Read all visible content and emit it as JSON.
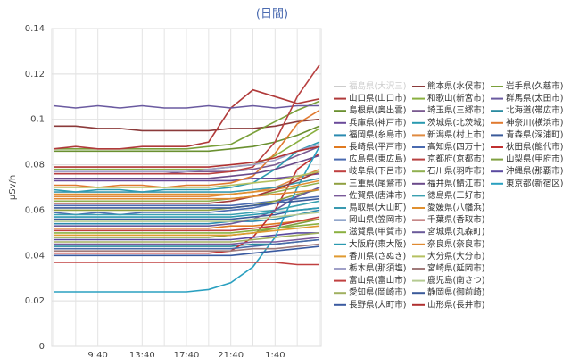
{
  "chart_data": {
    "type": "line",
    "title": "(日間)",
    "y_label": "μSv/h",
    "categories": [
      null,
      null,
      "9:40",
      null,
      "13:40",
      null,
      "17:40",
      null,
      "21:40",
      null,
      "1:40",
      null,
      null
    ],
    "ylim": [
      0,
      0.14
    ],
    "yticks": [
      0,
      0.02,
      0.04,
      0.06,
      0.08,
      0.1,
      0.12,
      0.14
    ],
    "grid": true,
    "series": [
      {
        "name": "福島県(大沢三)",
        "color": "#4572a7",
        "hidden": true,
        "values": [
          null,
          null,
          null,
          null,
          null,
          null,
          null,
          null,
          null,
          null,
          null,
          null,
          null
        ]
      },
      {
        "name": "熊本県(水俣市)",
        "color": "#8b3a3a",
        "values": [
          0.097,
          0.097,
          0.096,
          0.096,
          0.095,
          0.095,
          0.095,
          0.095,
          0.096,
          0.096,
          0.097,
          0.099,
          0.1
        ]
      },
      {
        "name": "岩手県(久慈市)",
        "color": "#7aa03a",
        "values": [
          0.087,
          0.087,
          0.087,
          0.087,
          0.087,
          0.087,
          0.087,
          0.088,
          0.089,
          0.094,
          0.099,
          0.104,
          0.108
        ]
      },
      {
        "name": "山口県(山口市)",
        "color": "#b03a3a",
        "values": [
          0.087,
          0.088,
          0.087,
          0.087,
          0.088,
          0.088,
          0.088,
          0.09,
          0.105,
          0.113,
          0.11,
          0.107,
          0.109
        ]
      },
      {
        "name": "和歌山(新宮市)",
        "color": "#8ab040",
        "values": [
          0.078,
          0.078,
          0.078,
          0.078,
          0.078,
          0.078,
          0.078,
          0.078,
          0.079,
          0.08,
          0.084,
          0.09,
          0.096
        ]
      },
      {
        "name": "群馬県(太田市)",
        "color": "#6a5aa0",
        "values": [
          0.106,
          0.105,
          0.106,
          0.105,
          0.106,
          0.105,
          0.105,
          0.106,
          0.105,
          0.106,
          0.105,
          0.106,
          0.106
        ]
      },
      {
        "name": "島根県(奥出雲)",
        "color": "#6a9030",
        "values": [
          0.086,
          0.086,
          0.086,
          0.086,
          0.086,
          0.086,
          0.086,
          0.086,
          0.087,
          0.088,
          0.09,
          0.093,
          0.097
        ]
      },
      {
        "name": "埼玉県(三郷市)",
        "color": "#7a5a90",
        "values": [
          0.076,
          0.076,
          0.076,
          0.076,
          0.076,
          0.076,
          0.077,
          0.077,
          0.077,
          0.078,
          0.08,
          0.084,
          0.088
        ]
      },
      {
        "name": "北海道(帯広市)",
        "color": "#2a8aa0",
        "values": [
          0.044,
          0.044,
          0.044,
          0.044,
          0.044,
          0.044,
          0.044,
          0.044,
          0.044,
          0.045,
          0.045,
          0.046,
          0.047
        ]
      },
      {
        "name": "兵庫県(神戸市)",
        "color": "#6a4a9a",
        "values": [
          0.073,
          0.073,
          0.073,
          0.073,
          0.073,
          0.073,
          0.073,
          0.073,
          0.073,
          0.074,
          0.074,
          0.075,
          0.076
        ]
      },
      {
        "name": "茨城県(北茨城)",
        "color": "#2a9ab0",
        "values": [
          0.069,
          0.068,
          0.069,
          0.069,
          0.068,
          0.069,
          0.069,
          0.069,
          0.07,
          0.072,
          0.078,
          0.086,
          0.09
        ]
      },
      {
        "name": "神奈川(横浜市)",
        "color": "#e07a30",
        "values": [
          0.071,
          0.071,
          0.07,
          0.071,
          0.071,
          0.07,
          0.071,
          0.071,
          0.072,
          0.075,
          0.085,
          0.098,
          0.104
        ]
      },
      {
        "name": "福岡県(糸島市)",
        "color": "#2a8ab0",
        "values": [
          0.054,
          0.054,
          0.054,
          0.054,
          0.054,
          0.054,
          0.054,
          0.054,
          0.055,
          0.055,
          0.056,
          0.058,
          0.06
        ]
      },
      {
        "name": "新潟県(村上市)",
        "color": "#e08a40",
        "values": [
          0.066,
          0.066,
          0.066,
          0.066,
          0.066,
          0.066,
          0.066,
          0.066,
          0.067,
          0.068,
          0.07,
          0.074,
          0.078
        ]
      },
      {
        "name": "青森県(深浦町)",
        "color": "#3a5a9a",
        "values": [
          0.056,
          0.056,
          0.056,
          0.056,
          0.056,
          0.056,
          0.056,
          0.056,
          0.056,
          0.057,
          0.058,
          0.06,
          0.061
        ]
      },
      {
        "name": "長崎県(平戸市)",
        "color": "#e07a20",
        "values": [
          0.052,
          0.052,
          0.052,
          0.052,
          0.052,
          0.052,
          0.052,
          0.052,
          0.053,
          0.053,
          0.054,
          0.055,
          0.056
        ]
      },
      {
        "name": "高知県(四万十)",
        "color": "#4a6ab0",
        "values": [
          0.062,
          0.062,
          0.062,
          0.062,
          0.062,
          0.062,
          0.062,
          0.062,
          0.062,
          0.063,
          0.064,
          0.065,
          0.066
        ]
      },
      {
        "name": "秋田県(能代市)",
        "color": "#c03030",
        "values": [
          0.041,
          0.041,
          0.041,
          0.041,
          0.041,
          0.041,
          0.041,
          0.041,
          0.042,
          0.048,
          0.06,
          0.078,
          0.085
        ]
      },
      {
        "name": "広島県(東広島)",
        "color": "#4a6ab0",
        "values": [
          0.059,
          0.058,
          0.059,
          0.058,
          0.059,
          0.059,
          0.059,
          0.059,
          0.06,
          0.061,
          0.063,
          0.066,
          0.07
        ]
      },
      {
        "name": "京都府(京都市)",
        "color": "#b84040",
        "values": [
          0.076,
          0.076,
          0.076,
          0.076,
          0.076,
          0.076,
          0.076,
          0.076,
          0.077,
          0.079,
          0.09,
          0.11,
          0.124
        ]
      },
      {
        "name": "山梨県(甲府市)",
        "color": "#80a040",
        "values": [
          0.048,
          0.048,
          0.048,
          0.048,
          0.048,
          0.048,
          0.048,
          0.048,
          0.049,
          0.05,
          0.052,
          0.054,
          0.056
        ]
      },
      {
        "name": "岐阜県(下呂市)",
        "color": "#c04040",
        "values": [
          0.051,
          0.051,
          0.051,
          0.051,
          0.051,
          0.051,
          0.051,
          0.051,
          0.051,
          0.052,
          0.053,
          0.055,
          0.057
        ]
      },
      {
        "name": "石川県(羽咋市)",
        "color": "#90b050",
        "values": [
          0.064,
          0.064,
          0.064,
          0.064,
          0.064,
          0.064,
          0.064,
          0.064,
          0.065,
          0.066,
          0.068,
          0.07,
          0.072
        ]
      },
      {
        "name": "沖縄県(那覇市)",
        "color": "#5a4aa0",
        "values": [
          0.047,
          0.047,
          0.047,
          0.047,
          0.047,
          0.047,
          0.047,
          0.047,
          0.047,
          0.048,
          0.049,
          0.05,
          0.05
        ]
      },
      {
        "name": "三重県(尾鷲市)",
        "color": "#90a040",
        "values": [
          0.06,
          0.06,
          0.06,
          0.06,
          0.06,
          0.06,
          0.06,
          0.06,
          0.061,
          0.062,
          0.064,
          0.067,
          0.069
        ]
      },
      {
        "name": "福井県(鯖江市)",
        "color": "#6a4a8a",
        "values": [
          0.074,
          0.074,
          0.074,
          0.074,
          0.074,
          0.074,
          0.074,
          0.074,
          0.075,
          0.076,
          0.078,
          0.081,
          0.084
        ]
      },
      {
        "name": "東京都(新宿区)",
        "color": "#2aa0c0",
        "values": [
          0.024,
          0.024,
          0.024,
          0.024,
          0.024,
          0.024,
          0.024,
          0.025,
          0.028,
          0.035,
          0.048,
          0.07,
          0.088
        ]
      },
      {
        "name": "佐賀県(唐津市)",
        "color": "#7a5a9a",
        "values": [
          0.045,
          0.045,
          0.045,
          0.045,
          0.045,
          0.045,
          0.045,
          0.045,
          0.045,
          0.046,
          0.046,
          0.047,
          0.048
        ]
      },
      {
        "name": "徳島県(三好市)",
        "color": "#3aa0b0",
        "values": [
          0.058,
          0.058,
          0.058,
          0.058,
          0.058,
          0.058,
          0.058,
          0.058,
          0.058,
          0.059,
          0.06,
          0.062,
          0.064
        ]
      },
      {
        "name": "鳥取県(大山町)",
        "color": "#3a9ab0",
        "values": [
          0.068,
          0.068,
          0.068,
          0.068,
          0.068,
          0.068,
          0.068,
          0.068,
          0.068,
          0.069,
          0.07,
          0.072,
          0.074
        ]
      },
      {
        "name": "愛媛県(八幡浜)",
        "color": "#e09030",
        "values": [
          0.067,
          0.067,
          0.067,
          0.067,
          0.067,
          0.067,
          0.067,
          0.067,
          0.067,
          0.068,
          0.069,
          0.071,
          0.073
        ]
      },
      {
        "name": "岡山県(笠岡市)",
        "color": "#4a6aa8",
        "values": [
          0.043,
          0.043,
          0.043,
          0.043,
          0.043,
          0.043,
          0.043,
          0.043,
          0.043,
          0.044,
          0.045,
          0.046,
          0.047
        ]
      },
      {
        "name": "千葉県(香取市)",
        "color": "#a03a3a",
        "values": [
          0.063,
          0.063,
          0.063,
          0.063,
          0.063,
          0.063,
          0.063,
          0.063,
          0.064,
          0.066,
          0.069,
          0.073,
          0.077
        ]
      },
      {
        "name": "滋賀県(甲賀市)",
        "color": "#8ab040",
        "values": [
          0.05,
          0.05,
          0.05,
          0.05,
          0.05,
          0.05,
          0.05,
          0.05,
          0.05,
          0.051,
          0.052,
          0.053,
          0.054
        ]
      },
      {
        "name": "宮城県(丸森町)",
        "color": "#6a5a9a",
        "values": [
          0.053,
          0.053,
          0.053,
          0.053,
          0.053,
          0.053,
          0.053,
          0.053,
          0.054,
          0.056,
          0.06,
          0.066,
          0.07
        ]
      },
      {
        "name": "大阪府(東大阪)",
        "color": "#2a9ab0",
        "values": [
          0.057,
          0.057,
          0.057,
          0.057,
          0.057,
          0.057,
          0.057,
          0.057,
          0.057,
          0.058,
          0.059,
          0.06,
          0.061
        ]
      },
      {
        "name": "奈良県(奈良市)",
        "color": "#e08a30",
        "values": [
          0.065,
          0.065,
          0.065,
          0.065,
          0.065,
          0.065,
          0.065,
          0.065,
          0.065,
          0.066,
          0.067,
          0.068,
          0.069
        ]
      },
      {
        "name": "香川県(さぬき)",
        "color": "#e09a30",
        "values": [
          0.049,
          0.049,
          0.049,
          0.049,
          0.049,
          0.049,
          0.049,
          0.049,
          0.049,
          0.05,
          0.051,
          0.052,
          0.053
        ]
      },
      {
        "name": "大分県(大分市)",
        "color": "#b5c060",
        "values": [
          0.07,
          0.07,
          0.07,
          0.07,
          0.07,
          0.07,
          0.07,
          0.07,
          0.071,
          0.072,
          0.073,
          0.075,
          0.077
        ]
      },
      {
        "name": "栃木県(那須塩)",
        "color": "#a0a0c8",
        "values": [
          0.077,
          0.077,
          0.077,
          0.077,
          0.077,
          0.077,
          0.077,
          0.078,
          0.079,
          0.08,
          0.082,
          0.086,
          0.089
        ]
      },
      {
        "name": "宮崎県(延岡市)",
        "color": "#a07a7a",
        "values": [
          0.042,
          0.042,
          0.042,
          0.042,
          0.042,
          0.042,
          0.042,
          0.042,
          0.042,
          0.043,
          0.043,
          0.044,
          0.045
        ]
      },
      {
        "name": "富山県(富山市)",
        "color": "#c04040",
        "values": [
          0.037,
          0.037,
          0.037,
          0.037,
          0.037,
          0.037,
          0.037,
          0.037,
          0.037,
          0.037,
          0.037,
          0.036,
          0.036
        ]
      },
      {
        "name": "鹿児島(南さつ)",
        "color": "#b5ca92",
        "values": [
          0.055,
          0.055,
          0.055,
          0.055,
          0.055,
          0.055,
          0.055,
          0.055,
          0.055,
          0.056,
          0.057,
          0.058,
          0.059
        ]
      },
      {
        "name": "愛知県(岡崎市)",
        "color": "#a0b060",
        "values": [
          0.046,
          0.046,
          0.046,
          0.046,
          0.046,
          0.046,
          0.046,
          0.046,
          0.046,
          0.047,
          0.048,
          0.049,
          0.05
        ]
      },
      {
        "name": "静岡県(御前崎)",
        "color": "#3a5a9a",
        "values": [
          0.061,
          0.061,
          0.061,
          0.061,
          0.061,
          0.061,
          0.061,
          0.061,
          0.061,
          0.062,
          0.063,
          0.064,
          0.065
        ]
      },
      {
        "name": "長野県(大町市)",
        "color": "#3a5aa0",
        "values": [
          0.04,
          0.04,
          0.04,
          0.04,
          0.04,
          0.04,
          0.04,
          0.04,
          0.04,
          0.041,
          0.042,
          0.043,
          0.044
        ]
      },
      {
        "name": "山形県(長井市)",
        "color": "#b03030",
        "values": [
          0.079,
          0.079,
          0.079,
          0.079,
          0.079,
          0.079,
          0.079,
          0.079,
          0.08,
          0.081,
          0.083,
          0.086,
          0.088
        ]
      }
    ]
  }
}
